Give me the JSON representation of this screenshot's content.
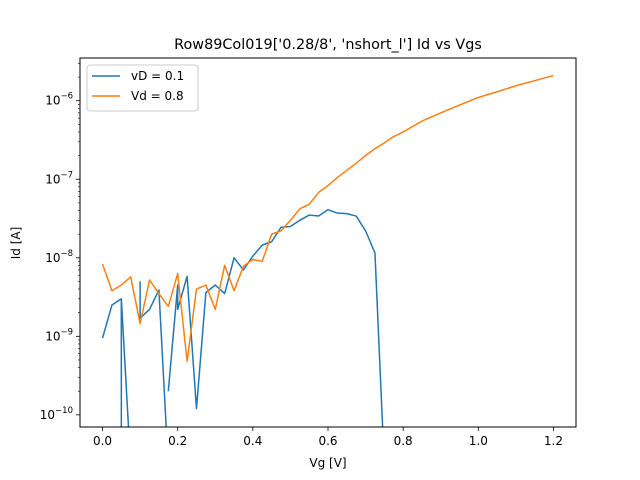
{
  "chart_data": {
    "type": "line",
    "title": "Row89Col019['0.28/8', 'nshort_l'] Id vs Vgs",
    "xlabel": "Vg [V]",
    "ylabel": "Id [A]",
    "xscale": "linear",
    "yscale": "log",
    "xlim": [
      -0.06,
      1.26
    ],
    "ylim": [
      7e-11,
      3.5e-06
    ],
    "xticks": [
      0.0,
      0.2,
      0.4,
      0.6,
      0.8,
      1.0,
      1.2
    ],
    "xtick_labels": [
      "0.0",
      "0.2",
      "0.4",
      "0.6",
      "0.8",
      "1.0",
      "1.2"
    ],
    "yticks": [
      1e-10,
      1e-09,
      1e-08,
      1e-07,
      1e-06
    ],
    "ytick_labels": [
      {
        "base": "10",
        "exp": "−10"
      },
      {
        "base": "10",
        "exp": "−9"
      },
      {
        "base": "10",
        "exp": "−8"
      },
      {
        "base": "10",
        "exp": "−7"
      },
      {
        "base": "10",
        "exp": "−6"
      }
    ],
    "legend_position": "upper-left",
    "grid": false,
    "series": [
      {
        "name": "vD = 0.1",
        "color": "#1f77b4",
        "x": [
          0.0,
          0.025,
          0.05,
          0.05,
          0.05,
          0.075,
          0.1,
          0.1,
          0.1,
          0.125,
          0.15,
          0.175,
          0.175,
          0.175,
          0.2,
          0.2,
          0.2,
          0.225,
          0.25,
          0.275,
          0.3,
          0.325,
          0.35,
          0.375,
          0.4,
          0.425,
          0.45,
          0.475,
          0.5,
          0.525,
          0.55,
          0.575,
          0.6,
          0.625,
          0.65,
          0.675,
          0.7,
          0.725,
          0.75,
          0.775,
          0.775,
          0.8,
          0.825,
          0.85,
          0.875,
          0.9,
          0.925,
          0.95,
          0.975,
          1.0
        ],
        "y": [
          9.5e-10,
          2.5e-09,
          3e-09,
          null,
          3e-09,
          null,
          5e-09,
          5e-09,
          1.7e-09,
          2.2e-09,
          3.9e-09,
          null,
          null,
          2e-10,
          4.5e-09,
          2.8e-09,
          2.2e-09,
          5.8e-09,
          1.2e-10,
          3.6e-09,
          4.5e-09,
          3.5e-09,
          1e-08,
          7e-09,
          1.05e-08,
          1.45e-08,
          1.6e-08,
          2.45e-08,
          2.5e-08,
          3e-08,
          3.5e-08,
          3.4e-08,
          4.1e-08,
          3.7e-08,
          3.65e-08,
          3.4e-08,
          2.2e-08,
          1.15e-08,
          null,
          null,
          null,
          null,
          null,
          null,
          null,
          null,
          null,
          null,
          null,
          null
        ]
      },
      {
        "name": "Vd = 0.8",
        "color": "#ff7f0e",
        "x": [
          0.0,
          0.025,
          0.05,
          0.075,
          0.1,
          0.125,
          0.15,
          0.175,
          0.2,
          0.225,
          0.25,
          0.275,
          0.3,
          0.325,
          0.35,
          0.375,
          0.4,
          0.425,
          0.45,
          0.475,
          0.5,
          0.525,
          0.55,
          0.575,
          0.6,
          0.625,
          0.65,
          0.675,
          0.7,
          0.725,
          0.75,
          0.775,
          0.8,
          0.85,
          0.9,
          0.95,
          1.0,
          1.05,
          1.1,
          1.15,
          1.2
        ],
        "y": [
          8.3e-09,
          3.8e-09,
          4.5e-09,
          5.7e-09,
          1.45e-09,
          5.2e-09,
          3.5e-09,
          2.4e-09,
          6.3e-09,
          4.8e-10,
          4e-09,
          4.5e-09,
          2.2e-09,
          8e-09,
          3.8e-09,
          7.8e-09,
          9.5e-09,
          9e-09,
          2e-08,
          2.2e-08,
          3e-08,
          4.2e-08,
          4.8e-08,
          6.8e-08,
          8.3e-08,
          1.05e-07,
          1.3e-07,
          1.6e-07,
          2e-07,
          2.45e-07,
          2.9e-07,
          3.5e-07,
          4e-07,
          5.5e-07,
          7e-07,
          8.8e-07,
          1.1e-06,
          1.3e-06,
          1.55e-06,
          1.8e-06,
          2.1e-06
        ]
      }
    ]
  }
}
